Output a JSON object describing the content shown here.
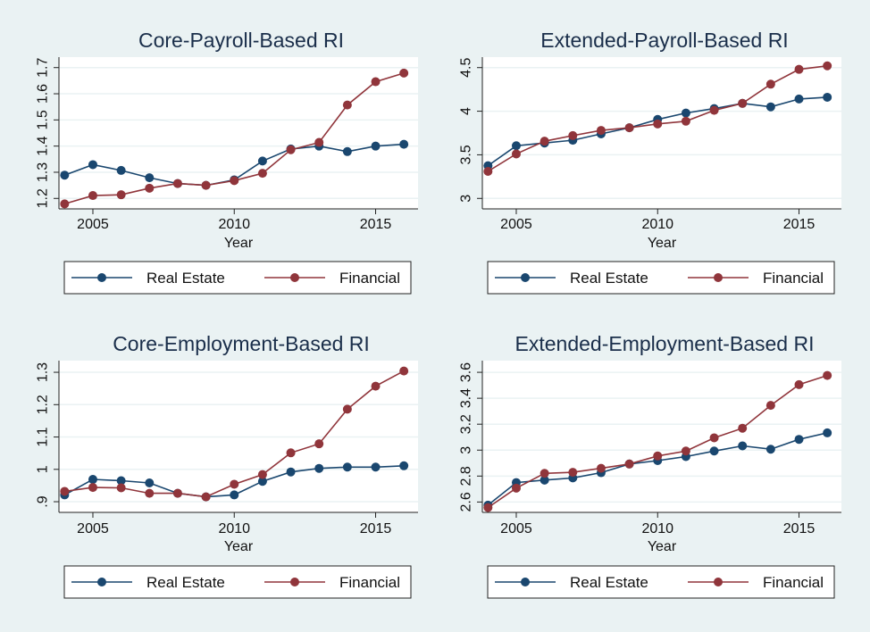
{
  "chart_data": [
    {
      "type": "line",
      "title": "Core-Payroll-Based RI",
      "xlabel": "Year",
      "ylabel": "",
      "x": [
        2004,
        2005,
        2006,
        2007,
        2008,
        2009,
        2010,
        2011,
        2012,
        2013,
        2014,
        2015,
        2016
      ],
      "xticks": [
        2005,
        2010,
        2015
      ],
      "xlim": [
        2003.8,
        2016.5
      ],
      "yticks": [
        1.2,
        1.3,
        1.4,
        1.5,
        1.6,
        1.7
      ],
      "ytick_labels": [
        "1.2",
        "1.3",
        "1.4",
        "1.5",
        "1.6",
        "1.7"
      ],
      "ylim": [
        1.16,
        1.74
      ],
      "grid": true,
      "legend": "bottom",
      "series": [
        {
          "name": "Real Estate",
          "color": "#1a476f",
          "values": [
            1.289,
            1.329,
            1.307,
            1.279,
            1.257,
            1.25,
            1.271,
            1.343,
            1.389,
            1.4,
            1.379,
            1.4,
            1.407
          ]
        },
        {
          "name": "Financial",
          "color": "#90353b",
          "values": [
            1.179,
            1.211,
            1.214,
            1.239,
            1.257,
            1.25,
            1.268,
            1.296,
            1.386,
            1.414,
            1.557,
            1.646,
            1.679
          ]
        }
      ]
    },
    {
      "type": "line",
      "title": "Extended-Payroll-Based RI",
      "xlabel": "Year",
      "ylabel": "",
      "x": [
        2004,
        2005,
        2006,
        2007,
        2008,
        2009,
        2010,
        2011,
        2012,
        2013,
        2014,
        2015,
        2016
      ],
      "xticks": [
        2005,
        2010,
        2015
      ],
      "xlim": [
        2003.8,
        2016.5
      ],
      "yticks": [
        3,
        3.5,
        4,
        4.5
      ],
      "ytick_labels": [
        "3",
        "3.5",
        "4",
        "4.5"
      ],
      "ylim": [
        2.88,
        4.62
      ],
      "grid": true,
      "legend": "bottom",
      "series": [
        {
          "name": "Real Estate",
          "color": "#1a476f",
          "values": [
            3.375,
            3.604,
            3.635,
            3.667,
            3.74,
            3.81,
            3.906,
            3.979,
            4.03,
            4.09,
            4.05,
            4.14,
            4.16
          ]
        },
        {
          "name": "Financial",
          "color": "#90353b",
          "values": [
            3.31,
            3.51,
            3.656,
            3.72,
            3.78,
            3.81,
            3.854,
            3.885,
            4.01,
            4.09,
            4.31,
            4.48,
            4.52
          ]
        }
      ]
    },
    {
      "type": "line",
      "title": "Core-Employment-Based RI",
      "xlabel": "Year",
      "ylabel": "",
      "x": [
        2004,
        2005,
        2006,
        2007,
        2008,
        2009,
        2010,
        2011,
        2012,
        2013,
        2014,
        2015,
        2016
      ],
      "xticks": [
        2005,
        2010,
        2015
      ],
      "xlim": [
        2003.8,
        2016.5
      ],
      "yticks": [
        0.9,
        1.0,
        1.1,
        1.2,
        1.3
      ],
      "ytick_labels": [
        ".9",
        "1",
        "1.1",
        "1.2",
        "1.3"
      ],
      "ylim": [
        0.867,
        1.336
      ],
      "grid": true,
      "legend": "bottom",
      "series": [
        {
          "name": "Real Estate",
          "color": "#1a476f",
          "values": [
            0.921,
            0.969,
            0.965,
            0.958,
            0.926,
            0.915,
            0.921,
            0.963,
            0.992,
            1.003,
            1.007,
            1.007,
            1.011
          ]
        },
        {
          "name": "Financial",
          "color": "#90353b",
          "values": [
            0.932,
            0.944,
            0.943,
            0.926,
            0.926,
            0.915,
            0.954,
            0.984,
            1.051,
            1.079,
            1.186,
            1.257,
            1.304
          ]
        }
      ]
    },
    {
      "type": "line",
      "title": "Extended-Employment-Based RI",
      "xlabel": "Year",
      "ylabel": "",
      "x": [
        2004,
        2005,
        2006,
        2007,
        2008,
        2009,
        2010,
        2011,
        2012,
        2013,
        2014,
        2015,
        2016
      ],
      "xticks": [
        2005,
        2010,
        2015
      ],
      "xlim": [
        2003.8,
        2016.5
      ],
      "yticks": [
        2.6,
        2.8,
        3.0,
        3.2,
        3.4,
        3.6
      ],
      "ytick_labels": [
        "2.6",
        "2.8",
        "3",
        "3.2",
        "3.4",
        "3.6"
      ],
      "ylim": [
        2.52,
        3.69
      ],
      "grid": true,
      "legend": "bottom",
      "series": [
        {
          "name": "Real Estate",
          "color": "#1a476f",
          "values": [
            2.576,
            2.75,
            2.769,
            2.786,
            2.826,
            2.893,
            2.919,
            2.95,
            2.993,
            3.033,
            3.007,
            3.083,
            3.133
          ]
        },
        {
          "name": "Financial",
          "color": "#90353b",
          "values": [
            2.557,
            2.707,
            2.821,
            2.829,
            2.86,
            2.893,
            2.955,
            2.993,
            3.095,
            3.169,
            3.345,
            3.505,
            3.576
          ]
        }
      ]
    }
  ]
}
